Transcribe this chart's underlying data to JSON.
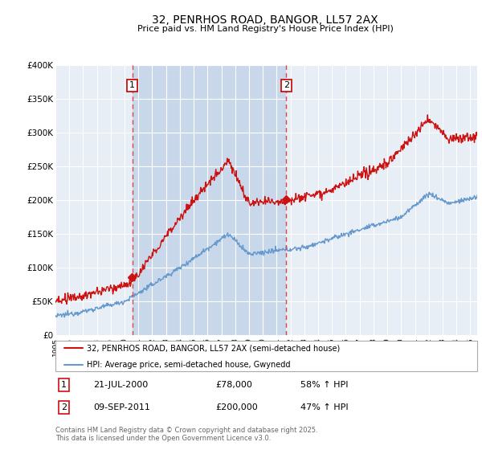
{
  "title": "32, PENRHOS ROAD, BANGOR, LL57 2AX",
  "subtitle": "Price paid vs. HM Land Registry's House Price Index (HPI)",
  "title_fontsize": 10,
  "subtitle_fontsize": 8,
  "ylim": [
    0,
    400000
  ],
  "yticks": [
    0,
    50000,
    100000,
    150000,
    200000,
    250000,
    300000,
    350000,
    400000
  ],
  "ytick_labels": [
    "£0",
    "£50K",
    "£100K",
    "£150K",
    "£200K",
    "£250K",
    "£300K",
    "£350K",
    "£400K"
  ],
  "xlim_start": 1995.0,
  "xlim_end": 2025.5,
  "background_color": "#ffffff",
  "plot_bg_color": "#e8eef5",
  "grid_color": "#ffffff",
  "transaction1_x": 2000.55,
  "transaction1_y": 78000,
  "transaction2_x": 2011.69,
  "transaction2_y": 200000,
  "vline_color": "#dd4444",
  "red_line_color": "#cc1111",
  "blue_line_color": "#6699cc",
  "shade_color": "#c8d8ea",
  "legend_label_red": "32, PENRHOS ROAD, BANGOR, LL57 2AX (semi-detached house)",
  "legend_label_blue": "HPI: Average price, semi-detached house, Gwynedd",
  "footnote": "Contains HM Land Registry data © Crown copyright and database right 2025.\nThis data is licensed under the Open Government Licence v3.0.",
  "table_rows": [
    [
      "1",
      "21-JUL-2000",
      "£78,000",
      "58% ↑ HPI"
    ],
    [
      "2",
      "09-SEP-2011",
      "£200,000",
      "47% ↑ HPI"
    ]
  ]
}
